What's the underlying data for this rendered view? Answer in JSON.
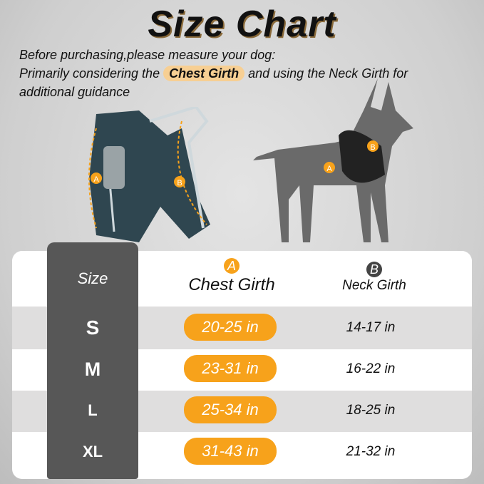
{
  "title": "Size Chart",
  "intro": {
    "line1": "Before purchasing,please measure your dog:",
    "line2_pre": "Primarily considering the",
    "line2_highlight": "Chest Girth",
    "line2_post": "and using the Neck Girth for",
    "line3": "additional guidance"
  },
  "labels": {
    "a": "A",
    "b": "B"
  },
  "table": {
    "headers": {
      "size": "Size",
      "chest": "Chest Girth",
      "neck": "Neck Girth"
    },
    "rows": [
      {
        "size": "S",
        "chest": "20-25 in",
        "neck": "14-17 in"
      },
      {
        "size": "M",
        "chest": "23-31 in",
        "neck": "16-22 in"
      },
      {
        "size": "L",
        "chest": "25-34 in",
        "neck": "18-25 in"
      },
      {
        "size": "XL",
        "chest": "31-43 in",
        "neck": "21-32 in"
      }
    ]
  },
  "colors": {
    "accent": "#f7a21b",
    "dark": "#575757",
    "highlight": "#f7cf93"
  }
}
